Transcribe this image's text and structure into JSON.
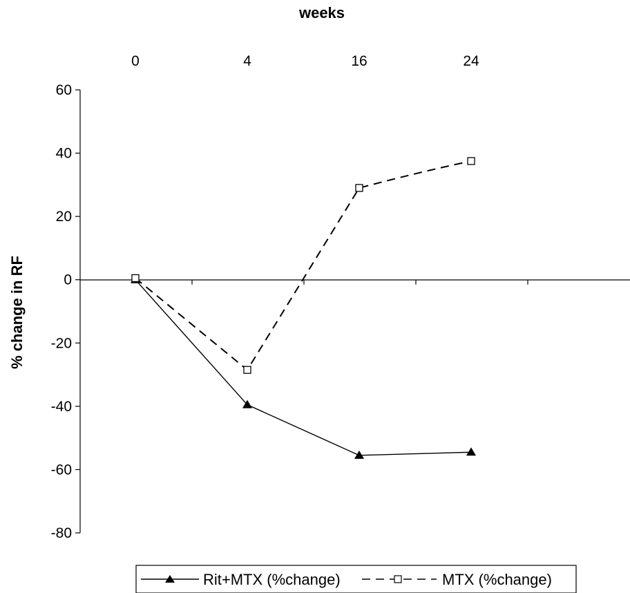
{
  "chart_data": {
    "type": "line",
    "title": "",
    "xlabel": "weeks",
    "ylabel": "% change in RF",
    "categories": [
      "0",
      "4",
      "16",
      "24"
    ],
    "ylim": [
      -80,
      60
    ],
    "yticks": [
      60,
      40,
      20,
      0,
      -20,
      -40,
      -60,
      -80
    ],
    "x_axis_position": "top",
    "grid": false,
    "legend_position": "bottom",
    "series": [
      {
        "name": "Rit+MTX (%change)",
        "values": [
          0,
          -39.5,
          -55.5,
          -54.5
        ],
        "marker": "filled-triangle",
        "line_style": "solid",
        "color": "#000000"
      },
      {
        "name": "MTX (%change)",
        "values": [
          0.5,
          -28.5,
          29,
          37.5
        ],
        "marker": "open-square",
        "line_style": "dashed",
        "color": "#000000"
      }
    ]
  }
}
